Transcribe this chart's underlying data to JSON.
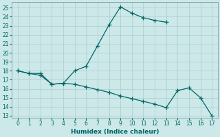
{
  "xlabel": "Humidex (Indice chaleur)",
  "bg_color": "#cce8e8",
  "grid_color": "#aacccc",
  "line_color": "#006666",
  "xlim": [
    -0.5,
    17.5
  ],
  "ylim": [
    12.8,
    25.6
  ],
  "yticks": [
    13,
    14,
    15,
    16,
    17,
    18,
    19,
    20,
    21,
    22,
    23,
    24,
    25
  ],
  "xticks": [
    0,
    1,
    2,
    3,
    4,
    5,
    6,
    7,
    8,
    9,
    10,
    11,
    12,
    13,
    14,
    15,
    16,
    17
  ],
  "line1_x": [
    0,
    1,
    2,
    3,
    4,
    5,
    6,
    7,
    8,
    9,
    10,
    11,
    12,
    13
  ],
  "line1_y": [
    18,
    17.7,
    17.7,
    16.5,
    16.6,
    18.0,
    18.5,
    20.8,
    23.1,
    25.1,
    24.4,
    23.9,
    23.6,
    23.4
  ],
  "line2_x": [
    0,
    1,
    2,
    3,
    4,
    5,
    6,
    7,
    8,
    9,
    10,
    11,
    12,
    13,
    14,
    15,
    16,
    17
  ],
  "line2_y": [
    18,
    17.7,
    17.5,
    16.5,
    16.6,
    16.5,
    16.2,
    15.9,
    15.6,
    15.2,
    14.9,
    14.6,
    14.3,
    13.9,
    15.8,
    16.1,
    15.0,
    13.0
  ],
  "tick_fontsize": 5.5,
  "xlabel_fontsize": 6.5
}
